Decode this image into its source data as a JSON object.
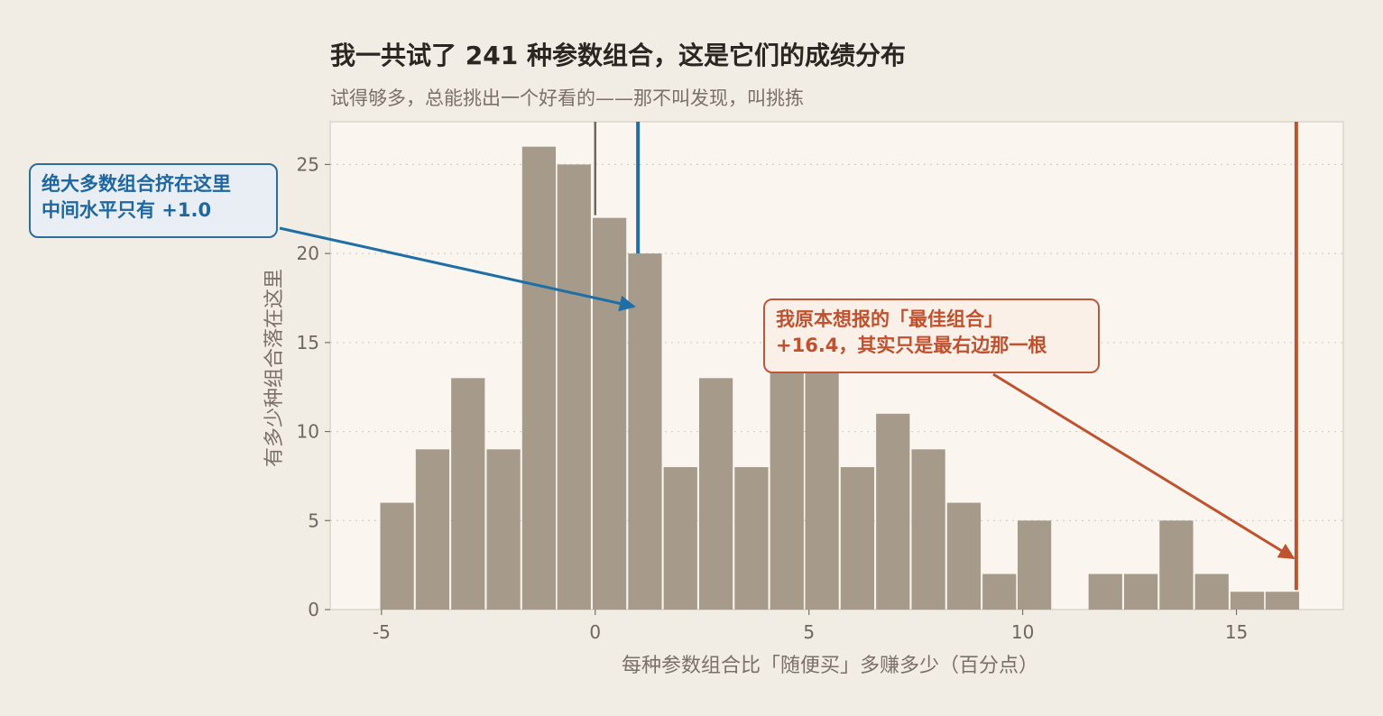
{
  "title": "我一共试了 241 种参数组合，这是它们的成绩分布",
  "subtitle": "试得够多，总能挑出一个好看的——那不叫发现，叫挑拣",
  "colors": {
    "background": "#f2ede4",
    "plot_background": "#faf6ef",
    "bar": "#a69b8b",
    "median_line": "#1f6fa6",
    "best_line": "#c0532f",
    "zero_line": "#6f665e"
  },
  "annotations": {
    "median_lines": [
      "绝大多数组合挤在这里",
      "中间水平只有 +1.0"
    ],
    "best_lines": [
      "我原本想报的「最佳组合」",
      "+16.4，其实只是最右边那一根"
    ]
  },
  "chart_data": {
    "type": "bar",
    "title": "我一共试了 241 种参数组合，这是它们的成绩分布",
    "subtitle": "试得够多，总能挑出一个好看的——那不叫发现，叫挑拣",
    "xlabel": "每种参数组合比「随便买」多赚多少（百分点）",
    "ylabel": "有多少种组合落在这里",
    "xlim": [
      -6.2,
      17.5
    ],
    "ylim": [
      0,
      27.4
    ],
    "x_ticks": [
      -5,
      0,
      5,
      10,
      15
    ],
    "x_tick_labels": [
      "-5",
      "0",
      "5",
      "10",
      "15"
    ],
    "y_ticks": [
      0,
      5,
      10,
      15,
      20,
      25
    ],
    "y_tick_labels": [
      "0",
      "5",
      "10",
      "15",
      "20",
      "25"
    ],
    "grid": "horizontal dotted",
    "bin_width": 0.828,
    "bin_starts": [
      -5.05,
      -4.22,
      -3.39,
      -2.56,
      -1.73,
      -0.91,
      -0.08,
      0.75,
      1.58,
      2.41,
      3.24,
      4.07,
      4.89,
      5.72,
      6.55,
      7.38,
      8.21,
      9.04,
      9.86,
      10.69,
      11.52,
      12.35,
      13.18,
      14.01,
      14.84,
      15.66
    ],
    "values": [
      6,
      9,
      13,
      9,
      26,
      25,
      22,
      20,
      8,
      13,
      8,
      14,
      14,
      8,
      11,
      9,
      6,
      2,
      5,
      0,
      2,
      2,
      5,
      2,
      1,
      1
    ],
    "reference_lines": [
      {
        "x": 0,
        "label": "0"
      },
      {
        "x": 1.0,
        "label": "+1.0"
      },
      {
        "x": 16.4,
        "label": "+16.4"
      }
    ]
  }
}
